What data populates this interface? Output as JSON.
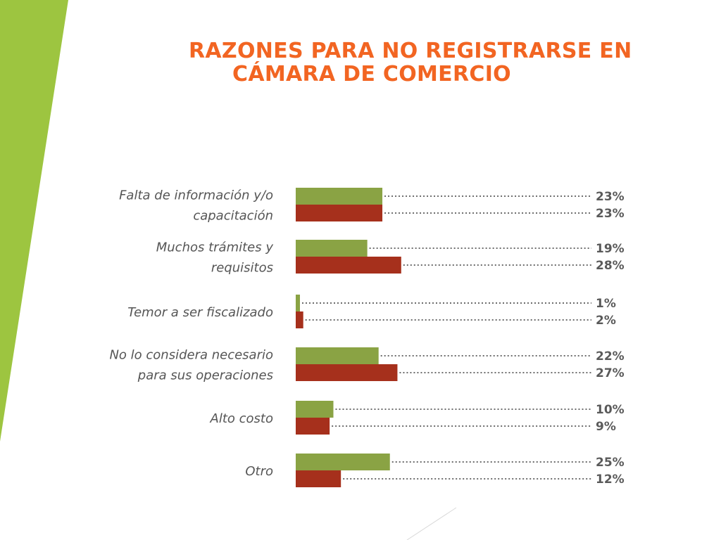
{
  "title": {
    "line1": "RAZONES PARA NO REGISTRARSE EN",
    "line2": "CÁMARA DE COMERCIO",
    "color": "#f26522"
  },
  "colors": {
    "accent_band": "#9dc540",
    "series_1": "#8aa344",
    "series_2": "#a6301c",
    "leader": "#6d6d6d",
    "deco_line": "#d9d9d9"
  },
  "chart_data": {
    "type": "bar",
    "orientation": "horizontal",
    "title": "RAZONES PARA NO REGISTRARSE EN CÁMARA DE COMERCIO",
    "categories": [
      [
        "Falta de información y/o",
        "capacitación"
      ],
      [
        "Muchos trámites y",
        "requisitos"
      ],
      [
        "Temor a ser fiscalizado"
      ],
      [
        "No lo considera necesario",
        "para sus operaciones"
      ],
      [
        "Alto costo"
      ],
      [
        "Otro"
      ]
    ],
    "series": [
      {
        "values": [
          23,
          19,
          1,
          22,
          10,
          25
        ],
        "labels": [
          "23%",
          "19%",
          "1%",
          "22%",
          "10%",
          "25%"
        ]
      },
      {
        "values": [
          23,
          28,
          2,
          27,
          9,
          12
        ],
        "labels": [
          "23%",
          "28%",
          "2%",
          "27%",
          "9%",
          "12%"
        ]
      }
    ],
    "unit": "%",
    "legend": "none",
    "grid": false
  }
}
